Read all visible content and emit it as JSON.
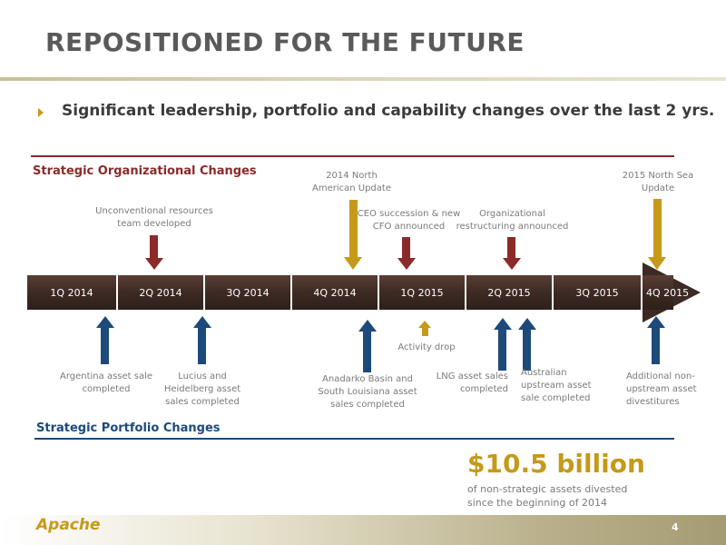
{
  "header": {
    "title": "REPOSITIONED FOR THE FUTURE",
    "subtitle": "Significant leadership, portfolio and capability changes over the last 2 yrs."
  },
  "sections": {
    "org_heading": "Strategic Organizational Changes",
    "portfolio_heading": "Strategic Portfolio Changes"
  },
  "timeline": {
    "quarters": [
      "1Q 2014",
      "2Q 2014",
      "3Q 2014",
      "4Q 2014",
      "1Q 2015",
      "2Q 2015",
      "3Q 2015",
      "4Q 2015"
    ]
  },
  "org_events": [
    {
      "text": "Unconventional resources team developed",
      "color": "#8b2a2a"
    },
    {
      "text": "2014 North American Update",
      "color": "#c59a1a"
    },
    {
      "text": "CEO succession & new CFO announced",
      "color": "#8b2a2a"
    },
    {
      "text": "Organizational restructuring announced",
      "color": "#8b2a2a"
    },
    {
      "text": "2015 North Sea Update",
      "color": "#c59a1a"
    }
  ],
  "portfolio_events": [
    {
      "text": "Argentina asset sale completed",
      "color": "#1d4a7a"
    },
    {
      "text": "Lucius and Heidelberg asset sales completed",
      "color": "#1d4a7a"
    },
    {
      "text": "Anadarko Basin and South Louisiana asset sales completed",
      "color": "#1d4a7a"
    },
    {
      "text": "Activity drop",
      "color": "#c59a1a"
    },
    {
      "text": "LNG asset sales completed",
      "color": "#1d4a7a"
    },
    {
      "text": "Australian upstream asset sale completed",
      "color": "#1d4a7a"
    },
    {
      "text": "Additional non-upstream asset divestitures",
      "color": "#1d4a7a"
    }
  ],
  "highlight": {
    "value": "$10.5 billion",
    "caption": "of non-strategic assets divested since the beginning of 2014"
  },
  "footer": {
    "logo": "Apache",
    "page_number": "4"
  },
  "colors": {
    "accent_gold": "#c59a1a",
    "org_red": "#8b2a2a",
    "portfolio_blue": "#1d4a7a",
    "timeline_brown": "#3d2a24"
  }
}
